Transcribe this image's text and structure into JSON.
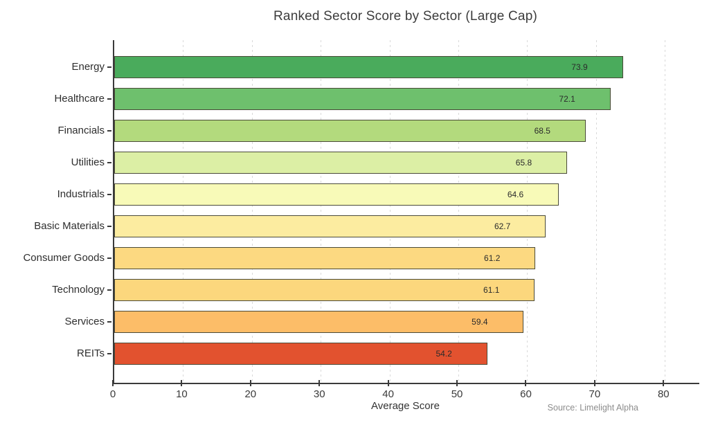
{
  "figure": {
    "title": "Ranked Sector Score by Sector (Large Cap)",
    "xlabel": "Average Score",
    "source": "Source: Limelight Alpha"
  },
  "chart_data": {
    "type": "bar",
    "orientation": "horizontal",
    "title": "Ranked Sector Score by Sector (Large Cap)",
    "xlabel": "Average Score",
    "ylabel": "",
    "categories": [
      "Energy",
      "Healthcare",
      "Financials",
      "Utilities",
      "Industrials",
      "Basic Materials",
      "Consumer Goods",
      "Technology",
      "Services",
      "REITs"
    ],
    "values": [
      73.9,
      72.1,
      68.5,
      65.8,
      64.6,
      62.7,
      61.2,
      61.1,
      59.4,
      54.2
    ],
    "value_labels": [
      "73.9",
      "72.1",
      "68.5",
      "65.8",
      "64.6",
      "62.7",
      "61.2",
      "61.1",
      "59.4",
      "54.2"
    ],
    "bar_colors": [
      "#4aab5c",
      "#6ec06d",
      "#b3da7d",
      "#dcefa5",
      "#f8fab8",
      "#fceca0",
      "#fcd981",
      "#fcd77d",
      "#fcbd68",
      "#e2522f"
    ],
    "xlim": [
      0,
      85
    ],
    "xticks": [
      0,
      10,
      20,
      30,
      40,
      50,
      60,
      70,
      80
    ],
    "grid": "vertical-dashed",
    "legend": "none",
    "source": "Source: Limelight Alpha"
  },
  "style": {
    "bar_edge_color": "#4a4a38",
    "axis_color": "#3a3a3a",
    "grid_color": "#d9d9d9",
    "text_color": "#2e2e2e",
    "muted_text_color": "#8c8c8c",
    "background_color": "#ffffff"
  }
}
